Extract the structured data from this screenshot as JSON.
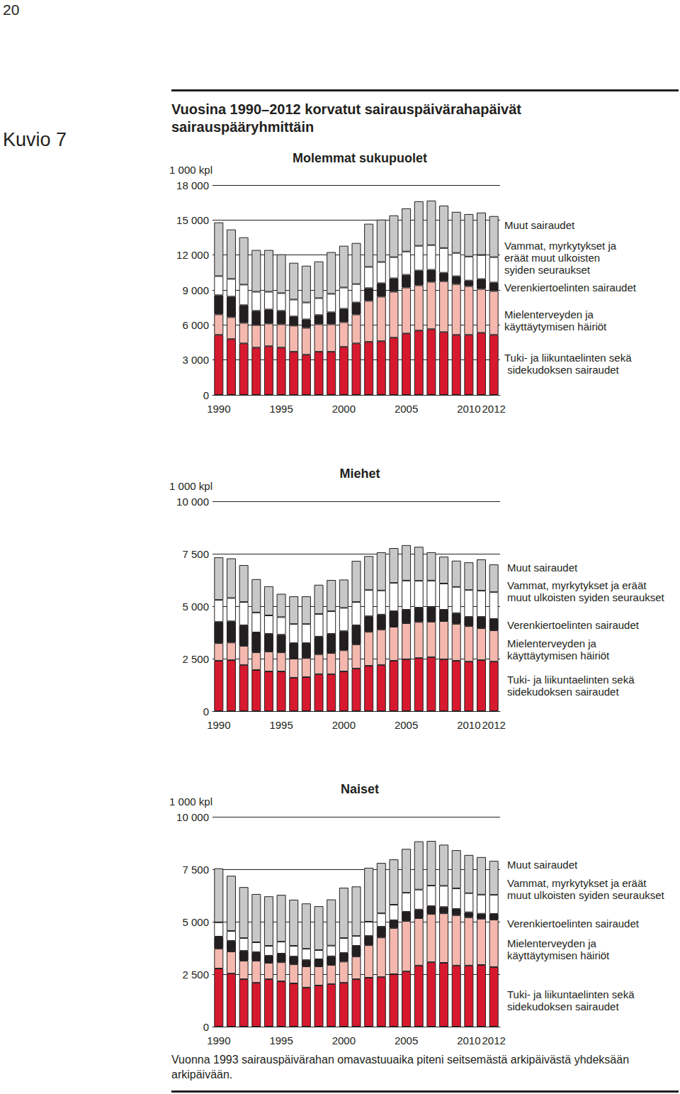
{
  "page_number": "20",
  "figure_label": "Kuvio 7",
  "title": "Vuosina 1990–2012 korvatut sairauspäivärahapäivät sairauspääryhmittäin",
  "note": "Vuonna 1993 sairauspäivärahan omavastuuaika piteni seitsemästä arkipäivästä yhdeksään arkipäivään.",
  "chart_data": [
    {
      "type": "bar",
      "title": "Molemmat sukupuolet",
      "y_label": "1 000 kpl",
      "stacked": true,
      "grid": true,
      "categories": [
        "1990",
        null,
        null,
        null,
        null,
        "1995",
        null,
        null,
        null,
        null,
        "2000",
        null,
        null,
        null,
        null,
        "2005",
        null,
        null,
        null,
        null,
        "2010",
        null,
        "2012"
      ],
      "ylim": [
        0,
        18000
      ],
      "yticks": [
        0,
        {
          "value": 3000,
          "label": "3 000"
        },
        {
          "value": 6000,
          "label": "6 000"
        },
        {
          "value": 9000,
          "label": "9 000"
        },
        {
          "value": 12000,
          "label": "12 000"
        },
        {
          "value": 15000,
          "label": "15 000"
        },
        {
          "value": 18000,
          "label": "18 000"
        }
      ],
      "series": [
        {
          "name": "Tuki- ja liikuntaelinten sekä sidekudoksen sairaudet",
          "color": "#d7192f",
          "values": [
            5150,
            4790,
            4420,
            4060,
            4180,
            4060,
            3700,
            3450,
            3700,
            3700,
            4120,
            4420,
            4550,
            4610,
            4910,
            5270,
            5520,
            5640,
            5390,
            5150,
            5150,
            5330,
            5150
          ]
        },
        {
          "name": "Mielenterveyden ja käyttäytymisen häiriöt",
          "color": "#f4b8ae",
          "values": [
            1760,
            1880,
            1760,
            1940,
            1940,
            2000,
            2240,
            2300,
            2360,
            2360,
            2120,
            2480,
            3520,
            3820,
            3940,
            3940,
            3880,
            4060,
            4360,
            4360,
            4180,
            3760,
            3760
          ]
        },
        {
          "name": "Verenkiertoelinten sairaudet",
          "color": "#231f20",
          "values": [
            1640,
            1760,
            1520,
            1210,
            1210,
            1150,
            790,
            730,
            790,
            1030,
            1150,
            1030,
            1090,
            1150,
            1150,
            1090,
            1270,
            1030,
            730,
            670,
            480,
            850,
            730
          ]
        },
        {
          "name": "Vammat, myrkytykset ja eräät muut ulkoisten syiden seuraukset",
          "color": "#ffffff",
          "values": [
            1640,
            1520,
            1760,
            1640,
            1520,
            1520,
            1450,
            1450,
            1450,
            1580,
            1820,
            1580,
            1820,
            1820,
            1820,
            2000,
            2120,
            2120,
            2120,
            2000,
            2060,
            2060,
            2180
          ]
        },
        {
          "name": "Muut sairaudet",
          "color": "#c8c8c8",
          "values": [
            4610,
            4240,
            4060,
            3580,
            3580,
            3330,
            3150,
            3150,
            3150,
            3580,
            3580,
            3520,
            3700,
            3640,
            3580,
            3700,
            3820,
            3820,
            3640,
            3520,
            3640,
            3640,
            3520
          ]
        }
      ]
    },
    {
      "type": "bar",
      "title": "Miehet",
      "y_label": "1 000 kpl",
      "stacked": true,
      "grid": true,
      "categories": [
        "1990",
        null,
        null,
        null,
        null,
        "1995",
        null,
        null,
        null,
        null,
        "2000",
        null,
        null,
        null,
        null,
        "2005",
        null,
        null,
        null,
        null,
        "2010",
        null,
        "2012"
      ],
      "ylim": [
        0,
        10000
      ],
      "yticks": [
        0,
        {
          "value": 2500,
          "label": "2 500"
        },
        {
          "value": 5000,
          "label": "5 000"
        },
        {
          "value": 7500,
          "label": "7 500"
        },
        {
          "value": 10000,
          "label": "10 000"
        }
      ],
      "series": [
        {
          "name": "Tuki- ja liikuntaelinten sekä sidekudoksen sairaudet",
          "color": "#d7192f",
          "values": [
            2400,
            2430,
            2200,
            1960,
            1890,
            1890,
            1590,
            1620,
            1760,
            1760,
            1890,
            2030,
            2160,
            2200,
            2400,
            2470,
            2530,
            2570,
            2470,
            2400,
            2360,
            2430,
            2360
          ]
        },
        {
          "name": "Mielenterveyden ja käyttäytymisen häiriöt",
          "color": "#f4b8ae",
          "values": [
            840,
            840,
            910,
            840,
            950,
            910,
            910,
            910,
            950,
            1010,
            1010,
            1150,
            1620,
            1690,
            1620,
            1720,
            1720,
            1690,
            1820,
            1760,
            1690,
            1520,
            1490
          ]
        },
        {
          "name": "Verenkiertoelinten sairaudet",
          "color": "#231f20",
          "values": [
            1010,
            1010,
            980,
            950,
            840,
            840,
            740,
            710,
            840,
            910,
            910,
            910,
            740,
            710,
            740,
            640,
            680,
            710,
            540,
            510,
            440,
            540,
            540
          ]
        },
        {
          "name": "Vammat, myrkytykset ja eräät muut ulkoisten syiden seuraukset",
          "color": "#ffffff",
          "values": [
            1050,
            1110,
            1110,
            950,
            880,
            840,
            910,
            910,
            1080,
            1080,
            1110,
            1110,
            1250,
            1150,
            1350,
            1390,
            1280,
            1250,
            1250,
            1250,
            1280,
            1250,
            1280
          ]
        },
        {
          "name": "Muut sairaudet",
          "color": "#c8c8c8",
          "values": [
            2030,
            1890,
            1760,
            1590,
            1390,
            1110,
            1320,
            1320,
            1390,
            1490,
            1350,
            1960,
            1620,
            1820,
            1660,
            1690,
            1620,
            1350,
            1280,
            1250,
            1320,
            1490,
            1320
          ]
        }
      ]
    },
    {
      "type": "bar",
      "title": "Naiset",
      "y_label": "1 000 kpl",
      "stacked": true,
      "grid": true,
      "categories": [
        "1990",
        null,
        null,
        null,
        null,
        "1995",
        null,
        null,
        null,
        null,
        "2000",
        null,
        null,
        null,
        null,
        "2005",
        null,
        null,
        null,
        null,
        "2010",
        null,
        "2012"
      ],
      "ylim": [
        0,
        10000
      ],
      "yticks": [
        0,
        {
          "value": 2500,
          "label": "2 500"
        },
        {
          "value": 5000,
          "label": "5 000"
        },
        {
          "value": 7500,
          "label": "7 500"
        },
        {
          "value": 10000,
          "label": "10 000"
        }
      ],
      "series": [
        {
          "name": "Tuki- ja liikuntaelinten sekä sidekudoksen sairaudet",
          "color": "#d7192f",
          "values": [
            2770,
            2530,
            2260,
            2090,
            2260,
            2160,
            2060,
            1860,
            1960,
            2030,
            2090,
            2260,
            2330,
            2360,
            2500,
            2630,
            2910,
            3070,
            3040,
            2910,
            2910,
            2940,
            2840
          ]
        },
        {
          "name": "Mielenterveyden ja käyttäytymisen häiriöt",
          "color": "#f4b8ae",
          "values": [
            950,
            1050,
            880,
            1050,
            780,
            910,
            910,
            1010,
            910,
            910,
            1010,
            1080,
            1550,
            1890,
            2200,
            2400,
            2260,
            2300,
            2360,
            2400,
            2300,
            2200,
            2260
          ]
        },
        {
          "name": "Verenkiertoelinten sairaudet",
          "color": "#231f20",
          "values": [
            570,
            510,
            470,
            410,
            340,
            410,
            370,
            300,
            340,
            410,
            410,
            510,
            440,
            510,
            370,
            440,
            410,
            370,
            300,
            300,
            240,
            240,
            270
          ]
        },
        {
          "name": "Vammat, myrkytykset ja eräät muut ulkoisten syiden seuraukset",
          "color": "#ffffff",
          "values": [
            680,
            470,
            610,
            470,
            470,
            570,
            510,
            540,
            440,
            510,
            710,
            470,
            680,
            640,
            740,
            910,
            950,
            980,
            1010,
            980,
            910,
            910,
            910
          ]
        },
        {
          "name": "Muut sairaudet",
          "color": "#c8c8c8",
          "values": [
            2570,
            2630,
            2430,
            2300,
            2360,
            2230,
            2200,
            2160,
            2090,
            2200,
            2400,
            2360,
            2570,
            2400,
            2160,
            2090,
            2300,
            2130,
            1960,
            1820,
            1820,
            1790,
            1620
          ]
        }
      ]
    }
  ]
}
